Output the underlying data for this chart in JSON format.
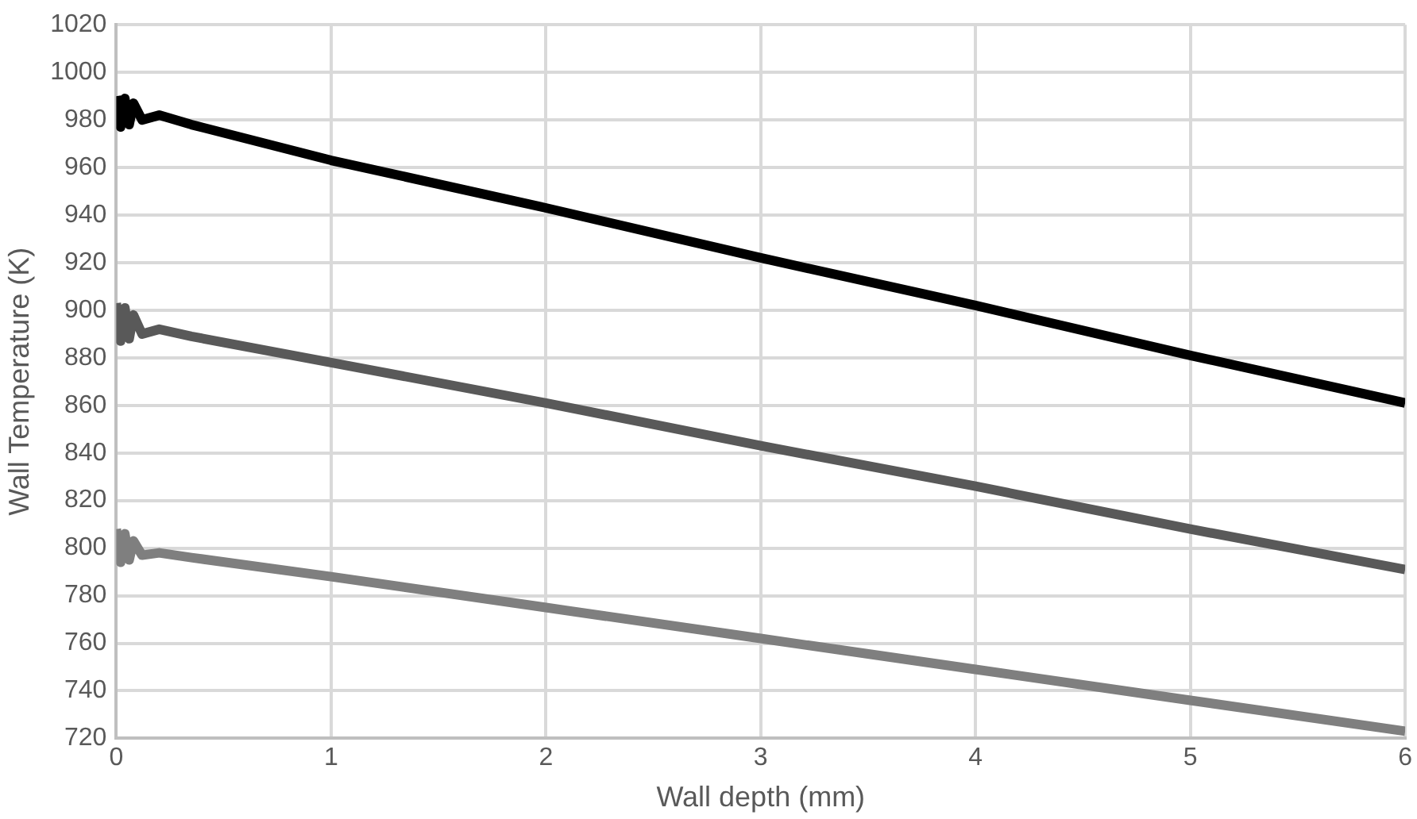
{
  "chart_data": {
    "type": "line",
    "xlabel": "Wall depth (mm)",
    "ylabel": "Wall Temperature (K)",
    "xlim": [
      0,
      6
    ],
    "xticks": [
      0,
      1,
      2,
      3,
      4,
      5,
      6
    ],
    "ylim": [
      720,
      1020
    ],
    "yticks": [
      720,
      740,
      760,
      780,
      800,
      820,
      840,
      860,
      880,
      900,
      920,
      940,
      960,
      980,
      1000,
      1020
    ],
    "grid": true,
    "legend": false,
    "marker": "none",
    "line_style": "solid",
    "series": [
      {
        "color": "#000000",
        "x": [
          0,
          0.02,
          0.04,
          0.06,
          0.08,
          0.12,
          0.2,
          0.35,
          1,
          2,
          3,
          4,
          5,
          6
        ],
        "values": [
          990,
          977,
          989,
          978,
          987,
          980,
          982,
          978,
          963,
          943,
          922,
          902,
          881,
          861
        ]
      },
      {
        "color": "#595959",
        "x": [
          0,
          0.02,
          0.04,
          0.06,
          0.08,
          0.12,
          0.2,
          0.35,
          1,
          2,
          3,
          4,
          5,
          6
        ],
        "values": [
          903,
          887,
          901,
          888,
          898,
          890,
          892,
          889,
          878,
          861,
          843,
          826,
          808,
          791
        ]
      },
      {
        "color": "#7f7f7f",
        "x": [
          0,
          0.02,
          0.04,
          0.06,
          0.08,
          0.12,
          0.2,
          0.35,
          1,
          2,
          3,
          4,
          5,
          6
        ],
        "values": [
          808,
          794,
          806,
          795,
          803,
          797,
          798,
          796,
          788,
          775,
          762,
          749,
          736,
          723
        ]
      }
    ]
  }
}
